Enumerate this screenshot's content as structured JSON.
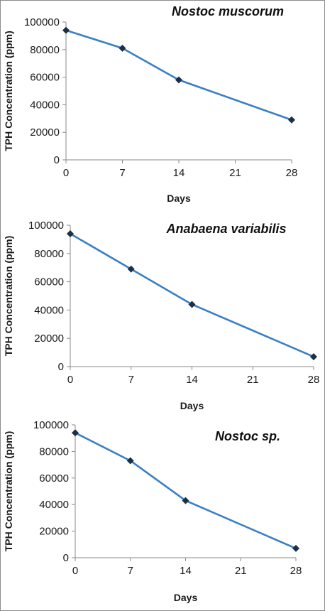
{
  "chart_data": [
    {
      "type": "line",
      "title": "Nostoc muscorum",
      "xlabel": "Days",
      "ylabel": "TPH Concentration (ppm)",
      "x_ticks": [
        0,
        7,
        14,
        21,
        28
      ],
      "y_ticks": [
        0,
        20000,
        40000,
        60000,
        80000,
        100000
      ],
      "xlim": [
        0,
        28
      ],
      "ylim": [
        0,
        100000
      ],
      "grid": false,
      "series": [
        {
          "x": [
            0,
            7,
            14,
            28
          ],
          "values": [
            94000,
            81000,
            58000,
            29000
          ]
        }
      ]
    },
    {
      "type": "line",
      "title": "Anabaena variabilis",
      "xlabel": "Days",
      "ylabel": "TPH Concentration (ppm)",
      "x_ticks": [
        0,
        7,
        14,
        21,
        28
      ],
      "y_ticks": [
        0,
        20000,
        40000,
        60000,
        80000,
        100000
      ],
      "xlim": [
        0,
        28
      ],
      "ylim": [
        0,
        100000
      ],
      "grid": false,
      "series": [
        {
          "x": [
            0,
            7,
            14,
            28
          ],
          "values": [
            94000,
            69000,
            44000,
            7000
          ]
        }
      ]
    },
    {
      "type": "line",
      "title": "Nostoc sp.",
      "xlabel": "Days",
      "ylabel": "TPH Concentration (ppm)",
      "x_ticks": [
        0,
        7,
        14,
        21,
        28
      ],
      "y_ticks": [
        0,
        20000,
        40000,
        60000,
        80000,
        100000
      ],
      "xlim": [
        0,
        28
      ],
      "ylim": [
        0,
        100000
      ],
      "grid": false,
      "series": [
        {
          "x": [
            0,
            7,
            14,
            28
          ],
          "values": [
            94000,
            73000,
            43000,
            7000
          ]
        }
      ]
    }
  ],
  "colors": {
    "line": "#3a7fc4",
    "marker": "#1b2f45",
    "axis": "#8a8a8a",
    "text": "#1a1a1a"
  }
}
